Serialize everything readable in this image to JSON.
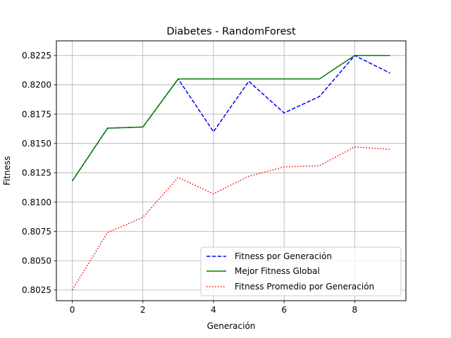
{
  "chart_data": {
    "type": "line",
    "title": "Diabetes - RandomForest",
    "xlabel": "Generación",
    "ylabel": "Fitness",
    "xlim": [
      -0.45,
      9.45
    ],
    "ylim": [
      0.80159,
      0.82375
    ],
    "xticks": [
      0,
      2,
      4,
      6,
      8
    ],
    "yticks": [
      0.8025,
      0.805,
      0.8075,
      0.81,
      0.8125,
      0.815,
      0.8175,
      0.82,
      0.8225
    ],
    "xtick_labels": [
      "0",
      "2",
      "4",
      "6",
      "8"
    ],
    "ytick_labels": [
      "0.8025",
      "0.8050",
      "0.8075",
      "0.8100",
      "0.8125",
      "0.8150",
      "0.8175",
      "0.8200",
      "0.8225"
    ],
    "grid": true,
    "legend_position": "lower-right",
    "x": [
      0,
      1,
      2,
      3,
      4,
      5,
      6,
      7,
      8,
      9
    ],
    "series": [
      {
        "name": "Fitness por Generación",
        "color": "#0000ff",
        "style": "dashed",
        "values": [
          0.8118,
          0.8163,
          0.8164,
          0.8205,
          0.816,
          0.8203,
          0.8176,
          0.819,
          0.8225,
          0.821
        ]
      },
      {
        "name": "Mejor Fitness Global",
        "color": "#008000",
        "style": "solid",
        "values": [
          0.8118,
          0.8163,
          0.8164,
          0.8205,
          0.8205,
          0.8205,
          0.8205,
          0.8205,
          0.8225,
          0.8225
        ]
      },
      {
        "name": "Fitness Promedio por Generación",
        "color": "#ff0000",
        "style": "dotted",
        "values": [
          0.8025,
          0.8074,
          0.8087,
          0.8121,
          0.8107,
          0.8122,
          0.813,
          0.8131,
          0.8147,
          0.8145
        ]
      }
    ]
  }
}
